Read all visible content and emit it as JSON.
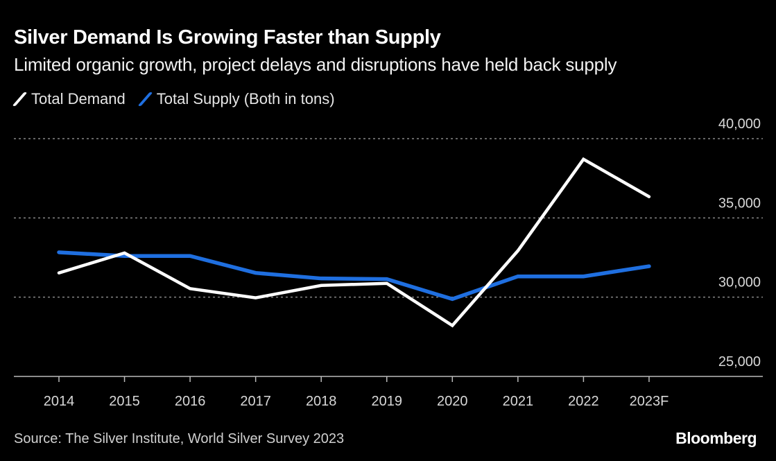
{
  "chart_data": {
    "type": "line",
    "title": "Silver Demand Is Growing Faster than Supply",
    "subtitle": "Limited organic growth, project delays and disruptions have held back supply",
    "categories": [
      "2014",
      "2015",
      "2016",
      "2017",
      "2018",
      "2019",
      "2020",
      "2021",
      "2022",
      "2023F"
    ],
    "series": [
      {
        "name": "Total Demand",
        "color": "#ffffff",
        "values": [
          31530,
          32790,
          30540,
          29960,
          30740,
          30870,
          28210,
          32930,
          38700,
          36340
        ]
      },
      {
        "name": "Total Supply (Both in tons)",
        "color": "#1f6fe0",
        "values": [
          32830,
          32600,
          32600,
          31530,
          31180,
          31140,
          29880,
          31310,
          31310,
          31950
        ]
      }
    ],
    "ylim": [
      25000,
      40000
    ],
    "yticks": [
      25000,
      30000,
      35000,
      40000
    ],
    "ytick_labels": [
      "25,000",
      "30,000",
      "35,000",
      "40,000"
    ],
    "grid": true,
    "legend": "top-left",
    "source": "Source: The Silver Institute, World Silver Survey 2023",
    "brand": "Bloomberg"
  }
}
